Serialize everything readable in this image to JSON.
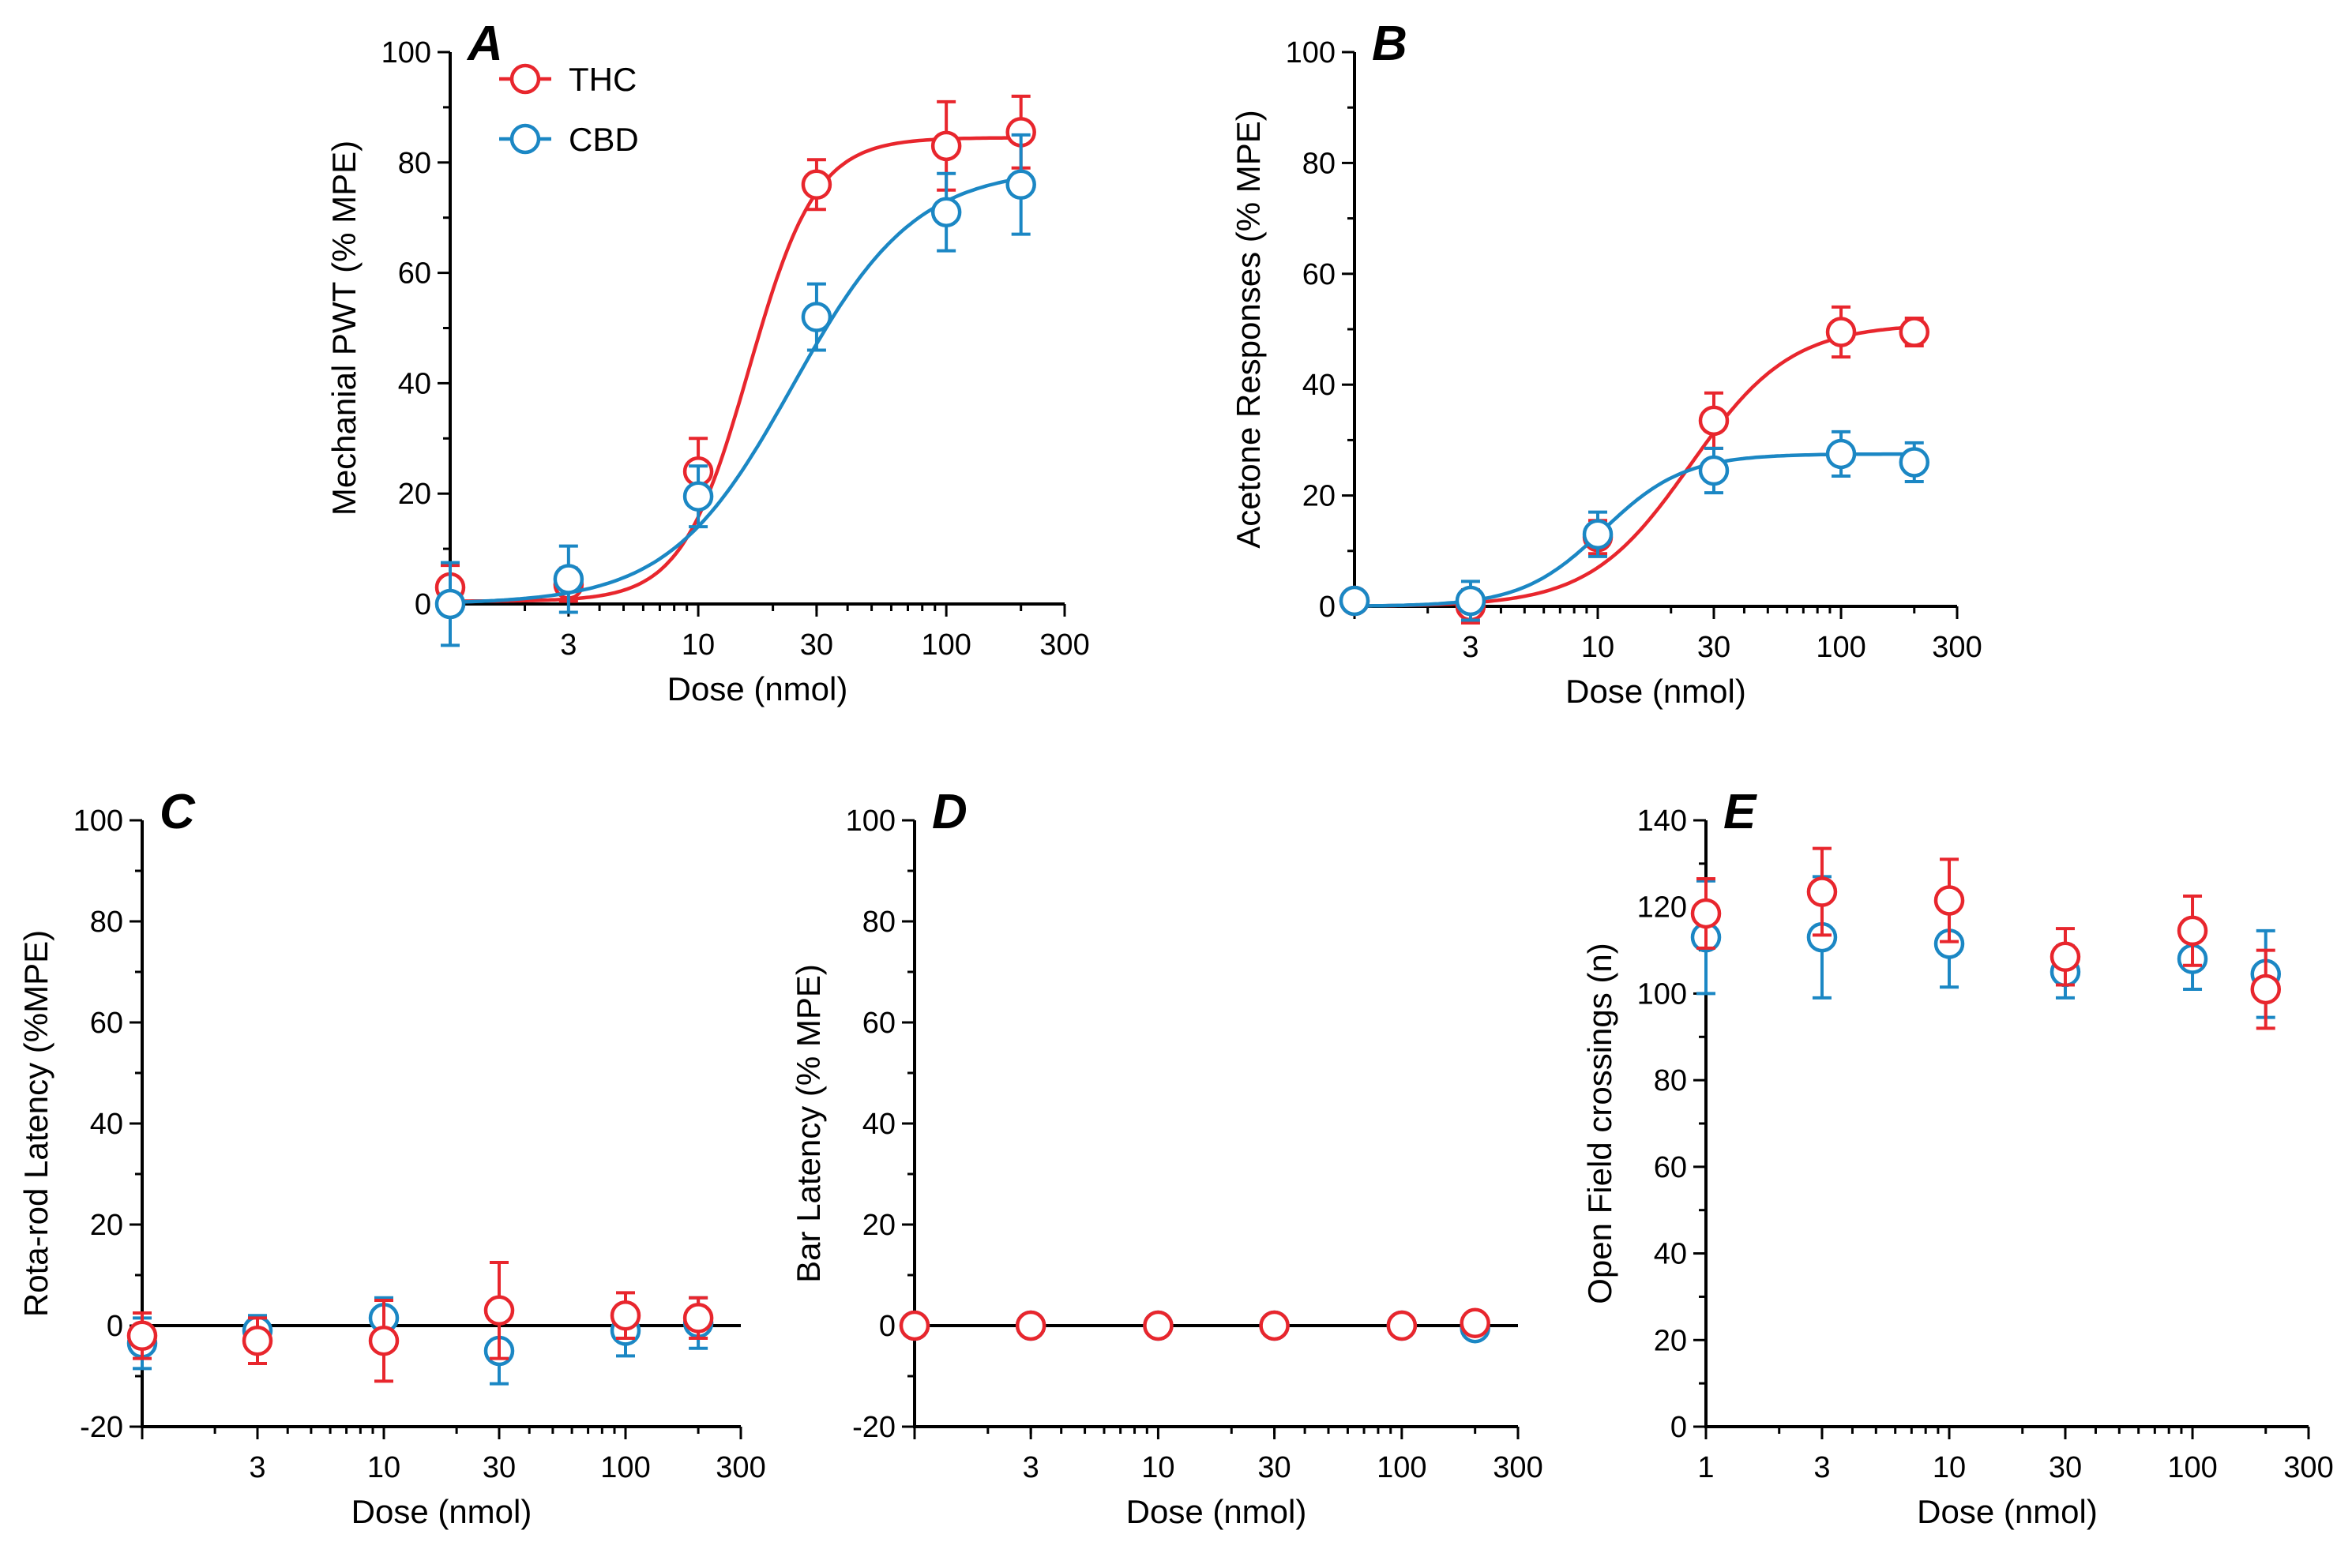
{
  "colors": {
    "THC": "#e8262d",
    "CBD": "#1b87c4",
    "axis": "#000000"
  },
  "legend": [
    {
      "key": "THC",
      "label": "THC"
    },
    {
      "key": "CBD",
      "label": "CBD"
    }
  ],
  "chart_data": [
    {
      "id": "A",
      "type": "line",
      "letter": "A",
      "xlabel": "Dose (nmol)",
      "ylabel": "Mechanial PWT (% MPE)",
      "xscale": "log",
      "xlim": [
        1,
        300
      ],
      "xticks": [
        3,
        10,
        30,
        100,
        300
      ],
      "xtick_labels": [
        "3",
        "10",
        "30",
        "100",
        "300"
      ],
      "ylim": [
        0,
        100
      ],
      "yticks": [
        0,
        20,
        40,
        60,
        80,
        100
      ],
      "ytick_labels": [
        "0",
        "20",
        "40",
        "60",
        "80",
        "100"
      ],
      "show_legend": true,
      "legend_position": "top-left",
      "series": [
        {
          "name": "THC",
          "x": [
            1,
            3,
            10,
            30,
            100,
            200
          ],
          "y": [
            3,
            3.5,
            24,
            76,
            83,
            85.5
          ],
          "err": [
            4,
            3,
            6,
            4.5,
            8,
            6.5
          ],
          "fit": {
            "bottom": 0.5,
            "top": 84.5,
            "ec50": 16,
            "hill": 3.2
          }
        },
        {
          "name": "CBD",
          "x": [
            1,
            3,
            10,
            30,
            100,
            200
          ],
          "y": [
            0,
            4.5,
            19.5,
            52,
            71,
            76
          ],
          "err": [
            7.5,
            6,
            5.5,
            6,
            7,
            9
          ],
          "fit": {
            "bottom": 0,
            "top": 79,
            "ec50": 24,
            "hill": 1.75
          }
        }
      ]
    },
    {
      "id": "B",
      "type": "line",
      "letter": "B",
      "xlabel": "Dose (nmol)",
      "ylabel": "Acetone Responses (% MPE)",
      "xscale": "log",
      "xlim": [
        1,
        300
      ],
      "xticks": [
        3,
        10,
        30,
        100,
        300
      ],
      "xtick_labels": [
        "3",
        "10",
        "30",
        "100",
        "300"
      ],
      "ylim": [
        0,
        100
      ],
      "yticks": [
        0,
        20,
        40,
        60,
        80,
        100
      ],
      "ytick_labels": [
        "0",
        "20",
        "40",
        "60",
        "80",
        "100"
      ],
      "show_legend": false,
      "series": [
        {
          "name": "THC",
          "x": [
            1,
            3,
            10,
            30,
            100,
            200
          ],
          "y": [
            1,
            0,
            12.5,
            33.5,
            49.5,
            49.5
          ],
          "err": [
            1,
            3,
            3,
            5,
            4.5,
            2.5
          ],
          "fit": {
            "bottom": 0,
            "top": 51,
            "ec50": 24,
            "hill": 2.1
          }
        },
        {
          "name": "CBD",
          "x": [
            1,
            3,
            10,
            30,
            100,
            200
          ],
          "y": [
            1,
            1,
            13,
            24.5,
            27.5,
            26
          ],
          "err": [
            1,
            3.5,
            4,
            4,
            4,
            3.5
          ],
          "fit": {
            "bottom": 0,
            "top": 27.5,
            "ec50": 10.5,
            "hill": 2.6
          }
        }
      ]
    },
    {
      "id": "C",
      "type": "scatter",
      "letter": "C",
      "xlabel": "Dose (nmol)",
      "ylabel": "Rota-rod Latency (%MPE)",
      "xscale": "log",
      "xlim": [
        1,
        300
      ],
      "xticks": [
        3,
        10,
        30,
        100,
        300
      ],
      "xtick_labels": [
        "3",
        "10",
        "30",
        "100",
        "300"
      ],
      "ylim": [
        -20,
        100
      ],
      "yticks": [
        -20,
        0,
        20,
        40,
        60,
        80,
        100
      ],
      "ytick_labels": [
        "-20",
        "0",
        "20",
        "40",
        "60",
        "80",
        "100"
      ],
      "zero_line": true,
      "show_legend": false,
      "series": [
        {
          "name": "CBD",
          "x": [
            1,
            3,
            10,
            30,
            100,
            200
          ],
          "y": [
            -3.5,
            -1,
            1.5,
            -5,
            -1,
            0.5
          ],
          "err": [
            5,
            3,
            4,
            6.5,
            5,
            5
          ]
        },
        {
          "name": "THC",
          "x": [
            1,
            3,
            10,
            30,
            100,
            200
          ],
          "y": [
            -2,
            -3,
            -3,
            3,
            2,
            1.5
          ],
          "err": [
            4.5,
            4.5,
            8,
            9.5,
            4.5,
            4
          ]
        }
      ]
    },
    {
      "id": "D",
      "type": "scatter",
      "letter": "D",
      "xlabel": "Dose (nmol)",
      "ylabel": "Bar Latency (% MPE)",
      "xscale": "log",
      "xlim": [
        1,
        300
      ],
      "xticks": [
        3,
        10,
        30,
        100,
        300
      ],
      "xtick_labels": [
        "3",
        "10",
        "30",
        "100",
        "300"
      ],
      "ylim": [
        -20,
        100
      ],
      "yticks": [
        -20,
        0,
        20,
        40,
        60,
        80,
        100
      ],
      "ytick_labels": [
        "-20",
        "0",
        "20",
        "40",
        "60",
        "80",
        "100"
      ],
      "zero_line": true,
      "show_legend": false,
      "series": [
        {
          "name": "CBD",
          "x": [
            1,
            3,
            10,
            30,
            100,
            200
          ],
          "y": [
            0,
            0,
            0,
            0,
            0,
            -0.5
          ],
          "err": [
            0,
            0,
            0,
            0,
            0,
            0.8
          ]
        },
        {
          "name": "THC",
          "x": [
            1,
            3,
            10,
            30,
            100,
            200
          ],
          "y": [
            0,
            0,
            0,
            0,
            0,
            0.5
          ],
          "err": [
            0,
            0,
            0,
            0,
            0,
            0
          ]
        }
      ]
    },
    {
      "id": "E",
      "type": "scatter",
      "letter": "E",
      "xlabel": "Dose (nmol)",
      "ylabel": "Open Field crossings (n)",
      "xscale": "log",
      "xlim": [
        1,
        300
      ],
      "xticks": [
        1,
        3,
        10,
        30,
        100,
        300
      ],
      "xtick_labels": [
        "1",
        "3",
        "10",
        "30",
        "100",
        "300"
      ],
      "ylim": [
        0,
        140
      ],
      "yticks": [
        0,
        20,
        40,
        60,
        80,
        100,
        120,
        140
      ],
      "ytick_labels": [
        "0",
        "20",
        "40",
        "60",
        "80",
        "100",
        "120",
        "140"
      ],
      "show_legend": false,
      "series": [
        {
          "name": "CBD",
          "x": [
            1,
            3,
            10,
            30,
            100,
            200
          ],
          "y": [
            113,
            113,
            111.5,
            105,
            108,
            104.5
          ],
          "err": [
            13,
            14,
            10,
            6,
            7,
            10
          ]
        },
        {
          "name": "THC",
          "x": [
            1,
            3,
            10,
            30,
            100,
            200
          ],
          "y": [
            118.5,
            123.5,
            121.5,
            108.5,
            114.5,
            101
          ],
          "err": [
            8,
            10,
            9.5,
            6.5,
            8,
            9
          ]
        }
      ]
    }
  ]
}
